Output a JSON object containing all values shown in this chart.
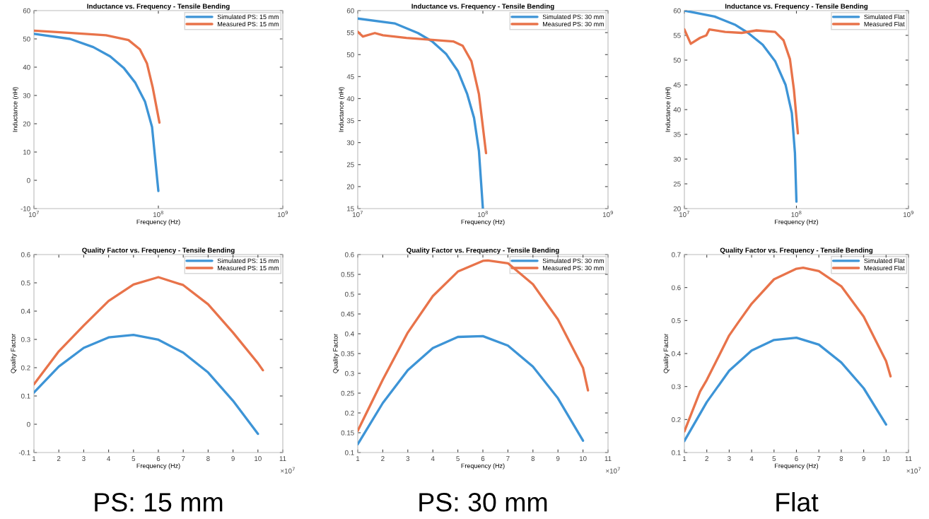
{
  "chart_data": [
    {
      "type": "line",
      "title": "Inductance vs. Frequency - Tensile Bending",
      "xlabel": "Frequency (Hz)",
      "ylabel": "Inductance (nH)",
      "log": "x",
      "xlim": [
        10000000,
        1000000000
      ],
      "xticks": [
        {
          "value": 10000000,
          "label": "10$^{7}$"
        },
        {
          "value": 100000000,
          "label": "10$^{8}$"
        },
        {
          "value": 1000000000,
          "label": "10$^{9}$"
        }
      ],
      "ylim": [
        -10,
        60
      ],
      "yticks": [
        -10,
        0,
        10,
        20,
        30,
        40,
        50,
        60
      ],
      "grid": false,
      "legend": "top right",
      "series": [
        {
          "name": "Simulated PS: 15 mm",
          "color": "#3d94d6",
          "x": [
            10000000,
            19500000,
            30000000,
            41000000,
            53000000,
            65000000,
            78000000,
            89000000,
            100000000
          ],
          "values": [
            51.8,
            50,
            47.1,
            43.8,
            39.6,
            34.6,
            27.9,
            18.8,
            -3.8
          ]
        },
        {
          "name": "Measured PS: 15 mm",
          "color": "#e8734a",
          "x": [
            10000000,
            20000000,
            38000000,
            57500000,
            71000000,
            81000000,
            90000000,
            102000000
          ],
          "values": [
            52.9,
            52.1,
            51.3,
            49.6,
            46.3,
            41.3,
            32.9,
            20.4
          ]
        }
      ]
    },
    {
      "type": "line",
      "title": "Inductance vs. Frequency - Tensile Bending",
      "xlabel": "Frequency (Hz)",
      "ylabel": "Inductance (nH)",
      "log": "x",
      "xlim": [
        10000000,
        1000000000
      ],
      "xticks": [
        {
          "value": 10000000,
          "label": "10$^{7}$"
        },
        {
          "value": 100000000,
          "label": "10$^{8}$"
        },
        {
          "value": 1000000000,
          "label": "10$^{9}$"
        }
      ],
      "ylim": [
        15,
        60
      ],
      "yticks": [
        15,
        20,
        25,
        30,
        35,
        40,
        45,
        50,
        55,
        60
      ],
      "grid": false,
      "legend": "top right",
      "series": [
        {
          "name": "Simulated PS: 30 mm",
          "color": "#3d94d6",
          "x": [
            10000000,
            19700000,
            30300000,
            39300000,
            51000000,
            63000000,
            75000000,
            85000000,
            93000000,
            100000000
          ],
          "values": [
            58.2,
            57.1,
            54.9,
            53.0,
            50.1,
            46.3,
            41.0,
            35.6,
            28.1,
            15
          ]
        },
        {
          "name": "Measured PS: 30 mm",
          "color": "#e8734a",
          "x": [
            10000000,
            11000000,
            13700000,
            15900000,
            24500000,
            58000000,
            69000000,
            81000000,
            93000000,
            106000000
          ],
          "values": [
            55.2,
            54.1,
            54.9,
            54.4,
            53.8,
            53.0,
            52.0,
            48.5,
            41.0,
            27.6
          ]
        }
      ]
    },
    {
      "type": "line",
      "title": "Inductance vs. Frequency - Tensile Bending",
      "xlabel": "Frequency (Hz)",
      "ylabel": "Inductance (nH)",
      "log": "x",
      "xlim": [
        10000000,
        1000000000
      ],
      "xticks": [
        {
          "value": 10000000,
          "label": "10$^{7}$"
        },
        {
          "value": 100000000,
          "label": "10$^{8}$"
        },
        {
          "value": 1000000000,
          "label": "10$^{9}$"
        }
      ],
      "ylim": [
        20,
        60
      ],
      "yticks": [
        20,
        25,
        30,
        35,
        40,
        45,
        50,
        55,
        60
      ],
      "grid": false,
      "legend": "top right",
      "series": [
        {
          "name": "Simulated Flat",
          "color": "#3d94d6",
          "x": [
            10000000,
            18600000,
            28600000,
            37000000,
            50000000,
            64500000,
            80000000,
            91000000,
            97000000,
            100000000
          ],
          "values": [
            60,
            58.8,
            57.1,
            55.5,
            53.1,
            49.8,
            45,
            39.3,
            31.2,
            21.4
          ]
        },
        {
          "name": "Measured Flat",
          "color": "#e8734a",
          "x": [
            10000000,
            11400000,
            13800000,
            15700000,
            16700000,
            23100000,
            32500000,
            44000000,
            64500000,
            76700000,
            87500000,
            95000000,
            103000000
          ],
          "values": [
            56.2,
            53.3,
            54.5,
            55.0,
            56.2,
            55.7,
            55.5,
            56.0,
            55.7,
            54.0,
            50.2,
            44.0,
            35.2
          ]
        }
      ]
    },
    {
      "type": "line",
      "title": "Quality Factor vs. Frequency - Tensile Bending",
      "xlabel": "Frequency (Hz)",
      "ylabel": "Quality Factor",
      "xlim": [
        1,
        11
      ],
      "xticks": [
        1,
        2,
        3,
        4,
        5,
        6,
        7,
        8,
        9,
        10,
        11
      ],
      "ylim": [
        -0.1,
        0.6
      ],
      "yticks": [
        -0.1,
        0,
        0.1,
        0.2,
        0.3,
        0.4,
        0.5,
        0.6
      ],
      "grid": false,
      "legend": "top right",
      "annotations": [
        "×10$^{7}$",
        "PS: 15 mm"
      ],
      "series": [
        {
          "name": "Simulated PS: 15 mm",
          "color": "#3d94d6",
          "x": [
            1,
            2,
            3,
            4,
            5,
            6,
            7,
            8,
            9,
            10
          ],
          "values": [
            0.112,
            0.204,
            0.27,
            0.307,
            0.316,
            0.299,
            0.253,
            0.183,
            0.083,
            -0.034
          ]
        },
        {
          "name": "Measured PS: 15 mm",
          "color": "#e8734a",
          "x": [
            1,
            2,
            3,
            4,
            5,
            6,
            7,
            8,
            9,
            10,
            10.2
          ],
          "values": [
            0.141,
            0.258,
            0.349,
            0.436,
            0.494,
            0.52,
            0.492,
            0.424,
            0.324,
            0.216,
            0.191
          ]
        }
      ]
    },
    {
      "type": "line",
      "title": "Quality Factor vs. Frequency - Tensile Bending",
      "xlabel": "Frequency (Hz)",
      "ylabel": "Quality Factor",
      "xlim": [
        1,
        11
      ],
      "xticks": [
        1,
        2,
        3,
        4,
        5,
        6,
        7,
        8,
        9,
        10,
        11
      ],
      "ylim": [
        0.1,
        0.6
      ],
      "yticks": [
        0.1,
        0.15,
        0.2,
        0.25,
        0.3,
        0.35,
        0.4,
        0.45,
        0.5,
        0.55,
        0.6
      ],
      "grid": false,
      "legend": "top right",
      "annotations": [
        "×10$^{7}$",
        "PS: 30 mm"
      ],
      "series": [
        {
          "name": "Simulated PS: 30 mm",
          "color": "#3d94d6",
          "x": [
            1,
            2,
            3,
            4,
            5,
            6,
            7,
            8,
            9,
            10
          ],
          "values": [
            0.121,
            0.225,
            0.308,
            0.364,
            0.392,
            0.394,
            0.37,
            0.317,
            0.237,
            0.13
          ]
        },
        {
          "name": "Measured PS: 30 mm",
          "color": "#e8734a",
          "x": [
            1,
            2,
            3,
            4,
            5,
            6,
            6.2,
            7,
            8,
            9,
            10,
            10.2
          ],
          "values": [
            0.155,
            0.284,
            0.403,
            0.495,
            0.557,
            0.584,
            0.585,
            0.578,
            0.525,
            0.436,
            0.314,
            0.257
          ]
        }
      ]
    },
    {
      "type": "line",
      "title": "Quality Factor vs. Frequency - Tensile Bending",
      "xlabel": "Frequency (Hz)",
      "ylabel": "Quality Factor",
      "xlim": [
        1,
        11
      ],
      "xticks": [
        1,
        2,
        3,
        4,
        5,
        6,
        7,
        8,
        9,
        10,
        11
      ],
      "ylim": [
        0.1,
        0.7
      ],
      "yticks": [
        0.1,
        0.2,
        0.3,
        0.4,
        0.5,
        0.6,
        0.7
      ],
      "grid": false,
      "legend": "top right",
      "annotations": [
        "×10$^{7}$",
        "Flat"
      ],
      "series": [
        {
          "name": "Simulated Flat",
          "color": "#3d94d6",
          "x": [
            1,
            2,
            3,
            4,
            5,
            6,
            7,
            8,
            9,
            10
          ],
          "values": [
            0.135,
            0.253,
            0.348,
            0.409,
            0.441,
            0.448,
            0.427,
            0.373,
            0.295,
            0.185
          ]
        },
        {
          "name": "Measured Flat",
          "color": "#e8734a",
          "x": [
            1,
            1.7,
            2,
            3,
            3.4,
            4,
            5,
            6,
            6.3,
            7,
            8,
            9,
            10,
            10.2
          ],
          "values": [
            0.164,
            0.285,
            0.32,
            0.455,
            0.494,
            0.551,
            0.625,
            0.657,
            0.66,
            0.65,
            0.604,
            0.512,
            0.377,
            0.331
          ]
        }
      ]
    }
  ]
}
